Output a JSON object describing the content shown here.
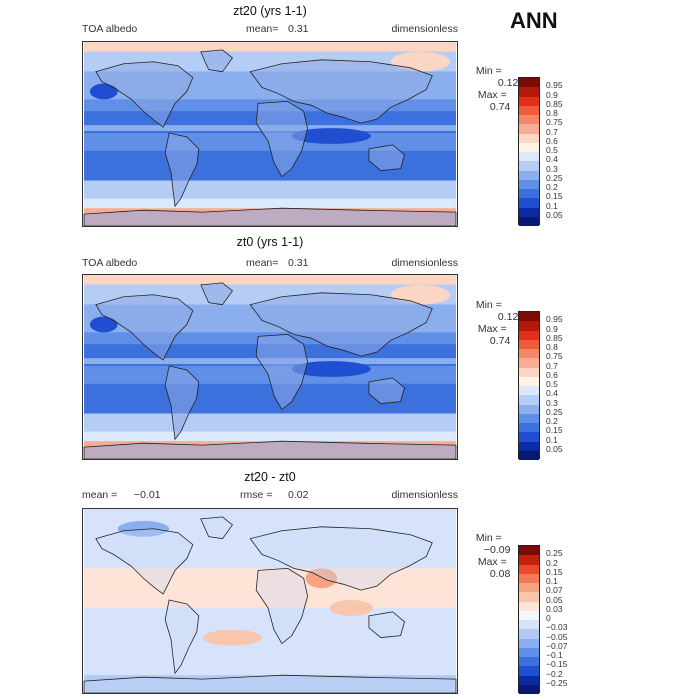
{
  "season": "ANN",
  "panels": [
    {
      "title": "zt20 (yrs 1-1)",
      "left": "TOA albedo",
      "mid_label": "mean=",
      "mid_value": "0.31",
      "right": "dimensionless",
      "min_label": "Min =",
      "min_value": "0.12",
      "max_label": "Max =",
      "max_value": "0.74",
      "colorbar": [
        "0.95",
        "0.9",
        "0.85",
        "0.8",
        "0.75",
        "0.7",
        "0.6",
        "0.5",
        "0.4",
        "0.3",
        "0.25",
        "0.2",
        "0.15",
        "0.1",
        "0.05"
      ]
    },
    {
      "title": "zt0 (yrs 1-1)",
      "left": "TOA albedo",
      "mid_label": "mean=",
      "mid_value": "0.31",
      "right": "dimensionless",
      "min_label": "Min =",
      "min_value": "0.12",
      "max_label": "Max =",
      "max_value": "0.74",
      "colorbar": [
        "0.95",
        "0.9",
        "0.85",
        "0.8",
        "0.75",
        "0.7",
        "0.6",
        "0.5",
        "0.4",
        "0.3",
        "0.25",
        "0.2",
        "0.15",
        "0.1",
        "0.05"
      ]
    },
    {
      "title": "zt20 - zt0",
      "left_label": "mean =",
      "left_value": "−0.01",
      "mid_label": "rmse =",
      "mid_value": "0.02",
      "right": "dimensionless",
      "min_label": "Min =",
      "min_value": "−0.09",
      "max_label": "Max =",
      "max_value": "0.08",
      "colorbar": [
        "0.25",
        "0.2",
        "0.15",
        "0.1",
        "0.07",
        "0.05",
        "0.03",
        "0",
        "−0.03",
        "−0.05",
        "−0.07",
        "−0.1",
        "−0.15",
        "−0.2",
        "−0.25"
      ]
    }
  ],
  "colors": {
    "abs_scale": [
      "#7a0c05",
      "#b3180a",
      "#e0301a",
      "#f05a3a",
      "#f4866a",
      "#f7ad95",
      "#fbd6c4",
      "#fff3e6",
      "#dce8fb",
      "#b5cdf5",
      "#8aaeee",
      "#5f8fe6",
      "#3c70dc",
      "#1f4ed0",
      "#0a2aa6",
      "#061a74"
    ],
    "diff_scale": [
      "#7a0c05",
      "#c42010",
      "#ea4a2a",
      "#f27a58",
      "#f6a384",
      "#f9c6ad",
      "#fde4d6",
      "#f4f6ff",
      "#d6e3fb",
      "#b2c9f4",
      "#8aaeee",
      "#5f8fe6",
      "#3c70dc",
      "#1f4ed0",
      "#0a2aa6",
      "#061a74"
    ]
  }
}
